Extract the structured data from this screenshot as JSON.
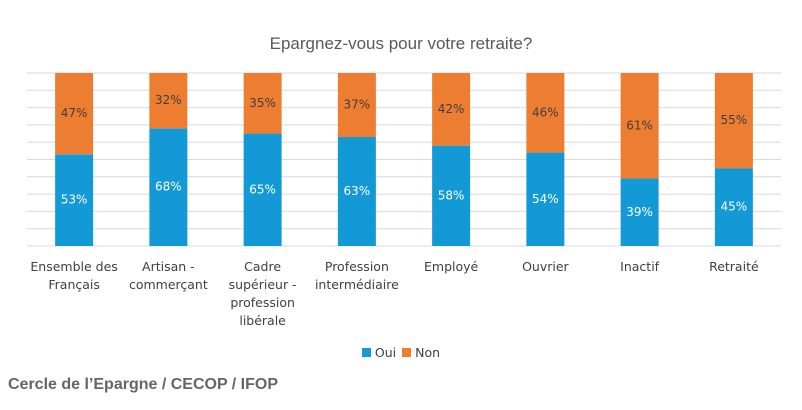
{
  "chart_data": {
    "type": "stacked_bar",
    "title": "Epargnez-vous pour votre retraite?",
    "categories": [
      "Ensemble des Français",
      "Artisan - commerçant",
      "Cadre supérieur - profession libérale",
      "Profession intermédiaire",
      "Employé",
      "Ouvrier",
      "Inactif",
      "Retraité"
    ],
    "series": [
      {
        "name": "Oui",
        "color": "#139ad6",
        "values": [
          53,
          68,
          65,
          63,
          58,
          54,
          39,
          45
        ],
        "value_labels": [
          "53%",
          "68%",
          "65%",
          "63%",
          "58%",
          "54%",
          "39%",
          "45%"
        ]
      },
      {
        "name": "Non",
        "color": "#ed7d31",
        "values": [
          47,
          32,
          35,
          37,
          42,
          46,
          61,
          55
        ],
        "value_labels": [
          "47%",
          "32%",
          "35%",
          "37%",
          "42%",
          "46%",
          "61%",
          "55%"
        ]
      }
    ],
    "ylim": [
      0,
      100
    ],
    "yticks": [
      0,
      10,
      20,
      30,
      40,
      50,
      60,
      70,
      80,
      90,
      100
    ],
    "grid": true,
    "source": "Cercle de l’Epargne / CECOP / IFOP"
  }
}
